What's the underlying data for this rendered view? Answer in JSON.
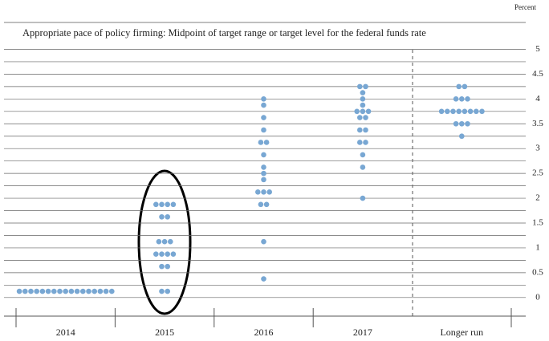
{
  "chart_data": {
    "type": "dot",
    "title": "Appropriate pace of policy firming: Midpoint of target range or target level for the federal funds rate",
    "y_unit": "Percent",
    "categories": [
      "2014",
      "2015",
      "2016",
      "2017",
      "Longer run"
    ],
    "values": [
      [
        0.125,
        0.125,
        0.125,
        0.125,
        0.125,
        0.125,
        0.125,
        0.125,
        0.125,
        0.125,
        0.125,
        0.125,
        0.125,
        0.125,
        0.125,
        0.125,
        0.125
      ],
      [
        0.125,
        0.125,
        0.625,
        0.625,
        0.875,
        0.875,
        0.875,
        0.875,
        1.125,
        1.125,
        1.125,
        1.625,
        1.625,
        1.875,
        1.875,
        1.875,
        1.875
      ],
      [
        0.375,
        1.125,
        1.875,
        1.875,
        2.125,
        2.125,
        2.125,
        2.375,
        2.5,
        2.625,
        2.875,
        3.125,
        3.125,
        3.375,
        3.625,
        3.875,
        4.0
      ],
      [
        2.0,
        2.625,
        2.875,
        3.125,
        3.125,
        3.375,
        3.375,
        3.625,
        3.625,
        3.75,
        3.75,
        3.75,
        3.875,
        4.0,
        4.125,
        4.25,
        4.25
      ],
      [
        3.25,
        3.5,
        3.5,
        3.5,
        3.75,
        3.75,
        3.75,
        3.75,
        3.75,
        3.75,
        3.75,
        3.75,
        4.0,
        4.0,
        4.0,
        4.25,
        4.25
      ]
    ],
    "color": "#78a7d3",
    "ylim": [
      -0.375,
      5.25
    ],
    "yticks": [
      0,
      0.5,
      1,
      1.5,
      2,
      2.5,
      3,
      3.5,
      4,
      4.5,
      5
    ],
    "ygrid": [
      0,
      0.25,
      0.5,
      0.75,
      1,
      1.25,
      1.5,
      1.75,
      2,
      2.25,
      2.5,
      2.75,
      3,
      3.25,
      3.5,
      3.75,
      4,
      4.25,
      4.5,
      4.75,
      5
    ]
  }
}
